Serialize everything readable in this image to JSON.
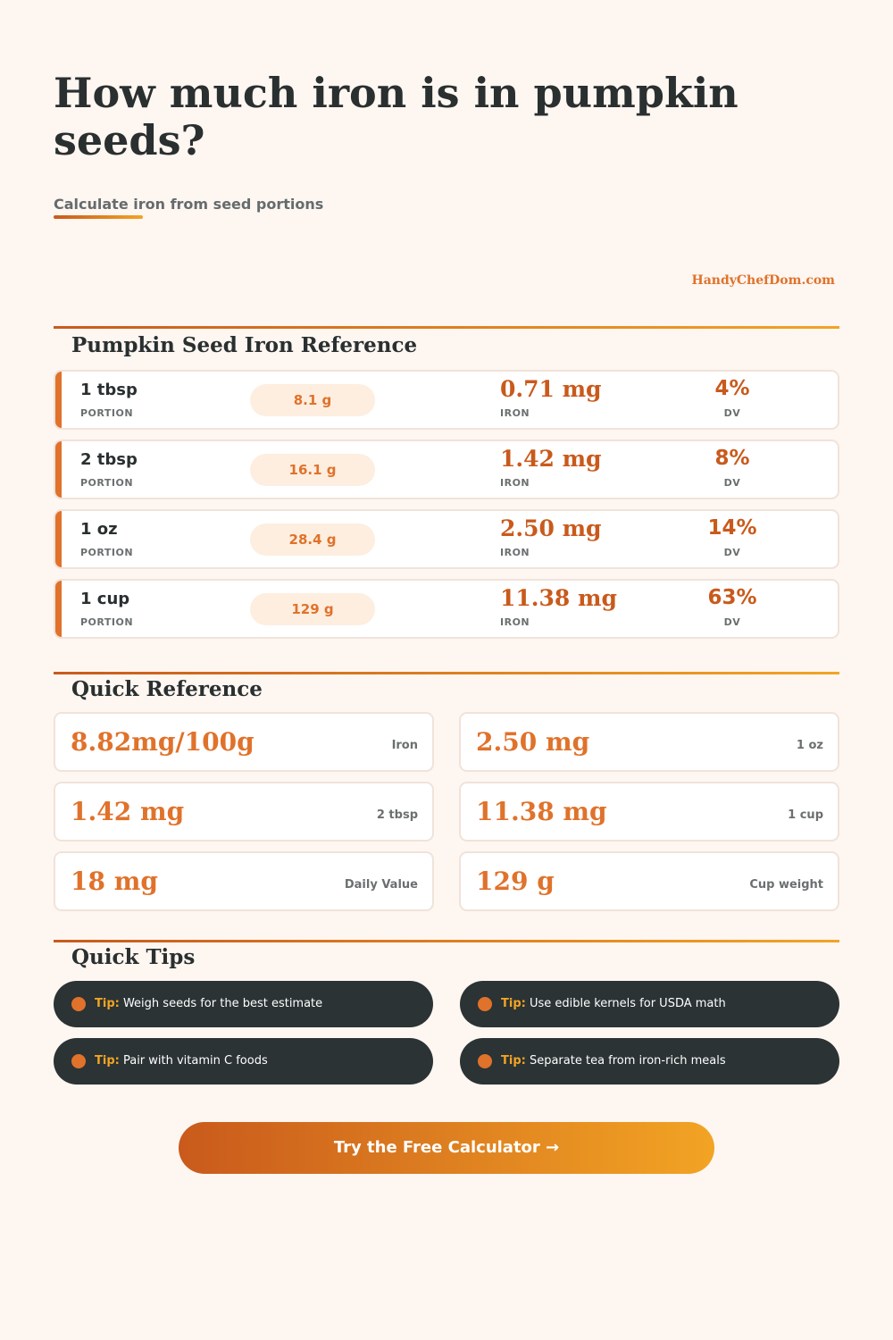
{
  "header": {
    "title": "How much iron is in pumpkin seeds?",
    "subtitle": "Calculate iron from seed portions",
    "brand": "HandyChefDom.com"
  },
  "reference": {
    "title": "Pumpkin Seed Iron Reference",
    "portion_label": "PORTION",
    "iron_label": "IRON",
    "dv_label": "DV",
    "rows": [
      {
        "portion": "1 tbsp",
        "weight": "8.1 g",
        "iron": "0.71 mg",
        "dv": "4%"
      },
      {
        "portion": "2 tbsp",
        "weight": "16.1 g",
        "iron": "1.42 mg",
        "dv": "8%"
      },
      {
        "portion": "1 oz",
        "weight": "28.4 g",
        "iron": "2.50 mg",
        "dv": "14%"
      },
      {
        "portion": "1 cup",
        "weight": "129 g",
        "iron": "11.38 mg",
        "dv": "63%"
      }
    ]
  },
  "quick_reference": {
    "title": "Quick Reference",
    "cards": [
      {
        "value": "8.82mg/100g",
        "caption": "Iron"
      },
      {
        "value": "2.50 mg",
        "caption": "1 oz"
      },
      {
        "value": "1.42 mg",
        "caption": "2 tbsp"
      },
      {
        "value": "11.38 mg",
        "caption": "1 cup"
      },
      {
        "value": "18 mg",
        "caption": "Daily Value"
      },
      {
        "value": "129 g",
        "caption": "Cup weight"
      }
    ]
  },
  "tips": {
    "title": "Quick Tips",
    "prefix": "Tip:",
    "items": [
      "Weigh seeds for the best estimate",
      "Use edible kernels for USDA math",
      "Pair with vitamin C foods",
      "Separate tea from iron-rich meals"
    ]
  },
  "cta": {
    "label": "Try the Free Calculator →"
  },
  "colors": {
    "background": "#fdf6f1",
    "accent": "#e0722b",
    "accent_dark": "#c95a1c",
    "accent_light": "#f2a424",
    "tip_background": "#2b3334"
  },
  "icons": {
    "tip_bullet": "dot-icon"
  }
}
